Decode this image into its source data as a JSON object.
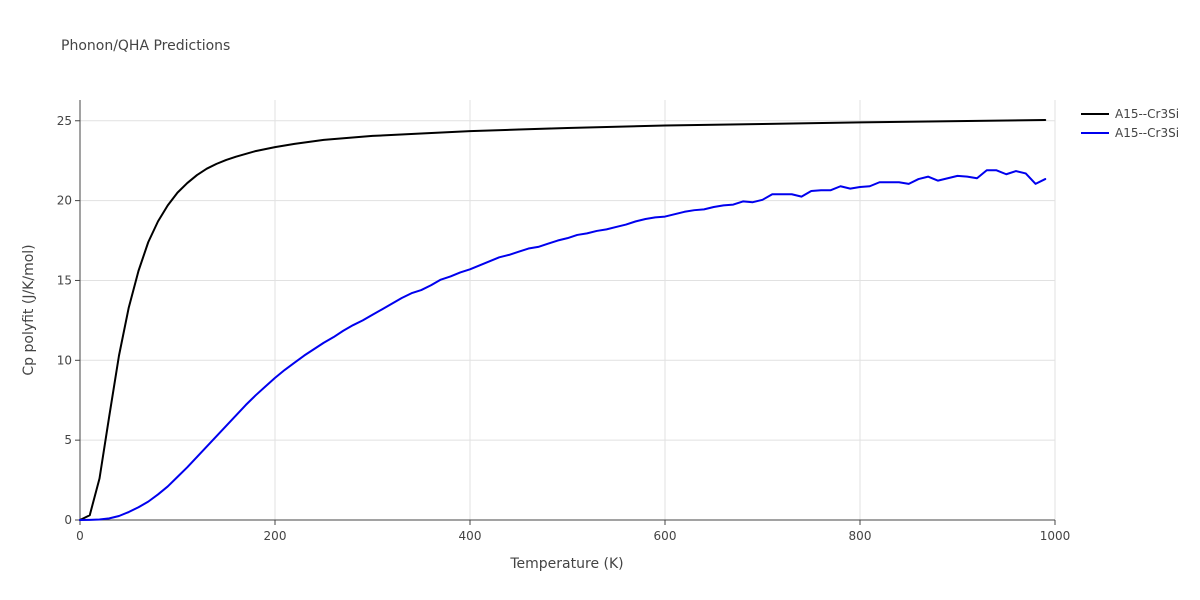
{
  "chart_data": {
    "type": "line",
    "title": "Phonon/QHA Predictions",
    "xlabel": "Temperature (K)",
    "ylabel": "Cp polyfit (J/K/mol)",
    "xlim": [
      0,
      1000
    ],
    "ylim": [
      0,
      26.3
    ],
    "xticks": [
      0,
      200,
      400,
      600,
      800,
      1000
    ],
    "yticks": [
      0,
      5,
      10,
      15,
      20,
      25
    ],
    "xtick_labels": [
      "0",
      "200",
      "400",
      "600",
      "800",
      "1000"
    ],
    "ytick_labels": [
      "0",
      "5",
      "10",
      "15",
      "20",
      "25"
    ],
    "grid": true,
    "legend_position": "top-right",
    "series": [
      {
        "name": "A15--Cr3Si",
        "color": "#000000",
        "x": [
          0,
          10,
          20,
          30,
          40,
          50,
          60,
          70,
          80,
          90,
          100,
          110,
          120,
          130,
          140,
          150,
          160,
          180,
          200,
          220,
          250,
          300,
          350,
          400,
          450,
          500,
          600,
          700,
          800,
          900,
          990
        ],
        "y": [
          0,
          0.3,
          2.6,
          6.5,
          10.3,
          13.3,
          15.6,
          17.4,
          18.7,
          19.7,
          20.5,
          21.1,
          21.6,
          22.0,
          22.3,
          22.55,
          22.75,
          23.1,
          23.35,
          23.55,
          23.8,
          24.05,
          24.2,
          24.35,
          24.45,
          24.55,
          24.7,
          24.8,
          24.9,
          24.98,
          25.05
        ]
      },
      {
        "name": "A15--Cr3Si",
        "color": "#0000ee",
        "x": [
          0,
          10,
          20,
          30,
          40,
          50,
          60,
          70,
          80,
          90,
          100,
          110,
          120,
          130,
          140,
          150,
          160,
          170,
          180,
          190,
          200,
          210,
          220,
          230,
          240,
          250,
          260,
          270,
          280,
          290,
          300,
          310,
          320,
          330,
          340,
          350,
          360,
          370,
          380,
          390,
          400,
          410,
          420,
          430,
          440,
          450,
          460,
          470,
          480,
          490,
          500,
          510,
          520,
          530,
          540,
          550,
          560,
          570,
          580,
          590,
          600,
          610,
          620,
          630,
          640,
          650,
          660,
          670,
          680,
          690,
          700,
          710,
          720,
          730,
          740,
          750,
          760,
          770,
          780,
          790,
          800,
          810,
          820,
          830,
          840,
          850,
          860,
          870,
          880,
          890,
          900,
          910,
          920,
          930,
          940,
          950,
          960,
          970,
          980,
          990
        ],
        "y": [
          0,
          0.01,
          0.03,
          0.1,
          0.25,
          0.5,
          0.8,
          1.15,
          1.6,
          2.1,
          2.7,
          3.3,
          3.95,
          4.6,
          5.25,
          5.9,
          6.55,
          7.2,
          7.8,
          8.35,
          8.9,
          9.4,
          9.85,
          10.3,
          10.7,
          11.1,
          11.45,
          11.85,
          12.2,
          12.5,
          12.85,
          13.2,
          13.55,
          13.9,
          14.2,
          14.4,
          14.7,
          15.05,
          15.25,
          15.5,
          15.7,
          15.95,
          16.2,
          16.45,
          16.6,
          16.8,
          17.0,
          17.1,
          17.3,
          17.5,
          17.65,
          17.85,
          17.95,
          18.1,
          18.2,
          18.35,
          18.5,
          18.7,
          18.85,
          18.95,
          19.0,
          19.15,
          19.3,
          19.4,
          19.45,
          19.6,
          19.7,
          19.75,
          19.95,
          19.9,
          20.05,
          20.4,
          20.4,
          20.4,
          20.25,
          20.6,
          20.65,
          20.65,
          20.9,
          20.75,
          20.85,
          20.9,
          21.15,
          21.15,
          21.15,
          21.05,
          21.35,
          21.5,
          21.25,
          21.4,
          21.55,
          21.5,
          21.4,
          21.9,
          21.9,
          21.65,
          21.85,
          21.7,
          21.05,
          21.35
        ]
      }
    ]
  }
}
